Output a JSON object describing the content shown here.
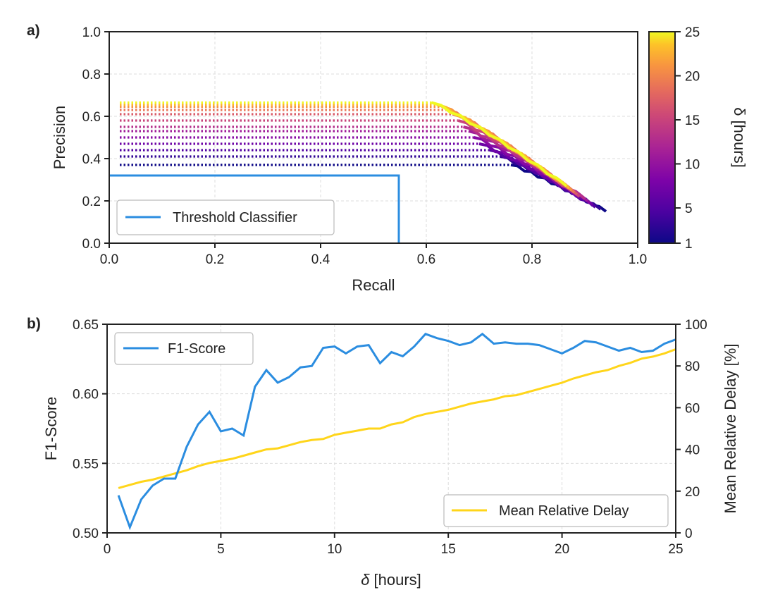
{
  "chart_data": [
    {
      "panel": "a)",
      "type": "line",
      "xlabel": "Recall",
      "ylabel": "Precision",
      "xlim": [
        0,
        1
      ],
      "ylim": [
        0,
        1
      ],
      "xticks": [
        "0.0",
        "0.2",
        "0.4",
        "0.6",
        "0.8",
        "1.0"
      ],
      "yticks": [
        "0.0",
        "0.2",
        "0.4",
        "0.6",
        "0.8",
        "1.0"
      ],
      "grid": true,
      "legend": {
        "location": "lower-left",
        "entries": [
          "Threshold Classifier"
        ]
      },
      "threshold_classifier": {
        "name": "Threshold Classifier",
        "color": "#2b8de0",
        "x": [
          0.0,
          0.548,
          0.548
        ],
        "y": [
          0.32,
          0.32,
          0.0
        ]
      },
      "pr_curves": {
        "colormap": "plasma",
        "note": "one precision-recall curve per delta; dotted flat segment then solid decreasing segment",
        "deltas": [
          1,
          3,
          5,
          7,
          9,
          11,
          13,
          15,
          17,
          19,
          21,
          23,
          25
        ],
        "plateau_precision": [
          0.37,
          0.41,
          0.44,
          0.47,
          0.5,
          0.53,
          0.55,
          0.58,
          0.61,
          0.63,
          0.645,
          0.655,
          0.665
        ],
        "knee_recall": [
          0.76,
          0.74,
          0.72,
          0.7,
          0.69,
          0.68,
          0.67,
          0.66,
          0.65,
          0.64,
          0.63,
          0.62,
          0.61
        ],
        "end_recall": [
          0.94,
          0.93,
          0.92,
          0.915,
          0.91,
          0.905,
          0.9,
          0.89,
          0.885,
          0.88,
          0.875,
          0.87,
          0.865
        ],
        "end_precision": [
          0.15,
          0.16,
          0.17,
          0.18,
          0.19,
          0.2,
          0.21,
          0.22,
          0.23,
          0.24,
          0.25,
          0.26,
          0.27
        ]
      },
      "colorbar": {
        "label": "δ [hours]",
        "ticks": [
          "1",
          "5",
          "10",
          "15",
          "20",
          "25"
        ],
        "range": [
          1,
          25
        ]
      }
    },
    {
      "panel": "b)",
      "type": "line",
      "xlabel": "δ [hours]",
      "ylabel": "F1-Score",
      "ylabel_right": "Mean Relative Delay [%]",
      "xlim": [
        0,
        25
      ],
      "ylim": [
        0.5,
        0.65
      ],
      "ylim_right": [
        0,
        100
      ],
      "xticks": [
        "0",
        "5",
        "10",
        "15",
        "20",
        "25"
      ],
      "yticks": [
        "0.50",
        "0.55",
        "0.60",
        "0.65"
      ],
      "yticks_right": [
        "0",
        "20",
        "40",
        "60",
        "80",
        "100"
      ],
      "grid": true,
      "x": [
        0.5,
        1,
        1.5,
        2,
        2.5,
        3,
        3.5,
        4,
        4.5,
        5,
        5.5,
        6,
        6.5,
        7,
        7.5,
        8,
        8.5,
        9,
        9.5,
        10,
        10.5,
        11,
        11.5,
        12,
        12.5,
        13,
        13.5,
        14,
        14.5,
        15,
        15.5,
        16,
        16.5,
        17,
        17.5,
        18,
        18.5,
        19,
        19.5,
        20,
        20.5,
        21,
        21.5,
        22,
        22.5,
        23,
        23.5,
        24,
        24.5,
        25
      ],
      "series": [
        {
          "name": "F1-Score",
          "axis": "left",
          "color": "#2b8de0",
          "legend": "upper-left",
          "values": [
            0.527,
            0.504,
            0.524,
            0.534,
            0.539,
            0.539,
            0.562,
            0.578,
            0.587,
            0.573,
            0.575,
            0.57,
            0.605,
            0.617,
            0.608,
            0.612,
            0.619,
            0.62,
            0.633,
            0.634,
            0.629,
            0.634,
            0.635,
            0.622,
            0.63,
            0.627,
            0.634,
            0.643,
            0.64,
            0.638,
            0.635,
            0.637,
            0.643,
            0.636,
            0.637,
            0.636,
            0.636,
            0.635,
            0.632,
            0.629,
            0.633,
            0.638,
            0.637,
            0.634,
            0.631,
            0.633,
            0.63,
            0.631,
            0.636,
            0.639
          ]
        },
        {
          "name": "Mean Relative Delay",
          "axis": "right",
          "color": "#ffd51a",
          "legend": "lower-right",
          "values": [
            21.5,
            23,
            24.5,
            25.5,
            27,
            28.5,
            30,
            32,
            33.5,
            34.5,
            35.5,
            37,
            38.5,
            40,
            40.5,
            42,
            43.5,
            44.5,
            45,
            47,
            48,
            49,
            50,
            50,
            52,
            53,
            55.5,
            57,
            58,
            59,
            60.5,
            62,
            63,
            64,
            65.5,
            66,
            67.5,
            69,
            70.5,
            72,
            74,
            75.5,
            77,
            78,
            80,
            81.5,
            83.5,
            84.5,
            86,
            88
          ]
        }
      ]
    }
  ]
}
